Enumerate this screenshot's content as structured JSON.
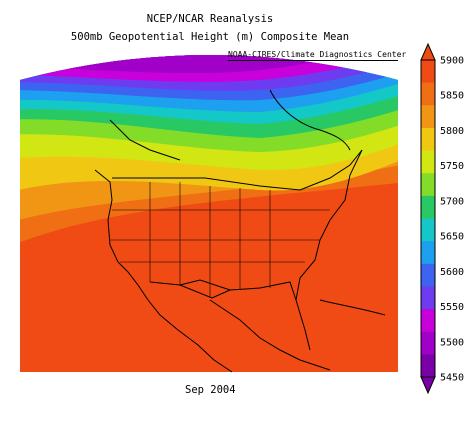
{
  "title": "NCEP/NCAR Reanalysis",
  "subtitle": "500mb Geopotential Height (m) Composite Mean",
  "credit": "NOAA-CIRES/Climate Diagnostics Center",
  "date_label": "Sep 2004",
  "colorbar": {
    "levels": [
      5450,
      5500,
      5550,
      5600,
      5650,
      5700,
      5750,
      5800,
      5850,
      5900
    ],
    "labels": [
      "5450",
      "5500",
      "5550",
      "5600",
      "5650",
      "5700",
      "5750",
      "5800",
      "5850",
      "5900"
    ],
    "colors": [
      "#7a00a8",
      "#a000c8",
      "#c800dc",
      "#6e3cf0",
      "#3c64f0",
      "#1ea0f0",
      "#14c8c8",
      "#28c864",
      "#82dc28",
      "#d2e614",
      "#f0c814",
      "#f09614",
      "#f06e14",
      "#f04b14"
    ]
  },
  "map": {
    "region": "North America",
    "variable": "500mb geopotential height",
    "units": "m"
  }
}
